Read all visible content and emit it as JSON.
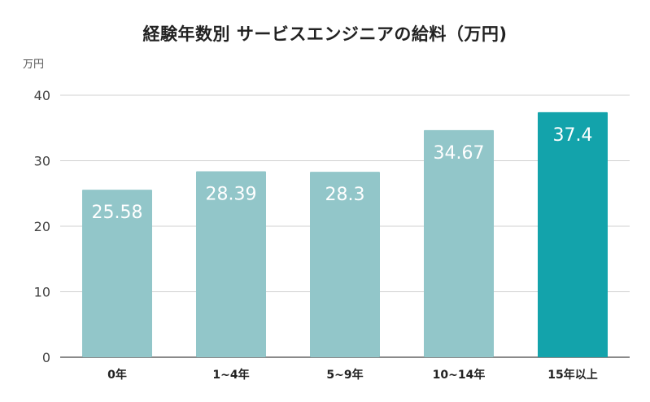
{
  "chart_data": {
    "type": "bar",
    "title": "経験年数別 サービスエンジニアの給料（万円)",
    "ylabel": "万円",
    "xlabel": "",
    "categories": [
      "0年",
      "1~4年",
      "5~9年",
      "10~14年",
      "15年以上"
    ],
    "values": [
      25.58,
      28.39,
      28.3,
      34.67,
      37.4
    ],
    "value_labels": [
      "25.58",
      "28.39",
      "28.3",
      "34.67",
      "37.4"
    ],
    "ylim": [
      0,
      40
    ],
    "yticks": [
      "0",
      "10",
      "20",
      "30",
      "40"
    ],
    "grid": true,
    "legend": "none",
    "colors": {
      "default_bar": "#92c6c9",
      "highlight_bar": "#13a3ab",
      "grid": "#d0d0d0",
      "axis": "#444444"
    },
    "highlight_index": 4
  }
}
